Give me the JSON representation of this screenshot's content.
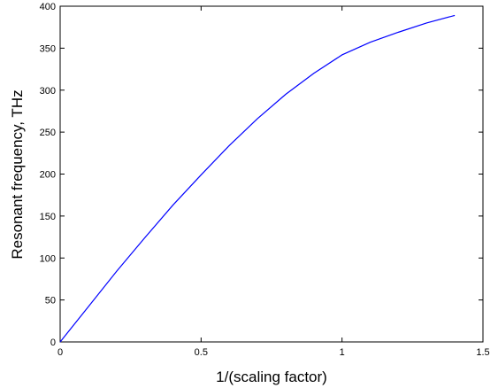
{
  "chart_data": {
    "type": "line",
    "title": "",
    "xlabel": "1/(scaling factor)",
    "ylabel": "Resonant frequency, THz",
    "xlim": [
      0,
      1.5
    ],
    "ylim": [
      0,
      400
    ],
    "xticks": [
      0,
      0.5,
      1,
      1.5
    ],
    "xtick_labels": [
      "0",
      "0.5",
      "1",
      "1.5"
    ],
    "yticks": [
      0,
      50,
      100,
      150,
      200,
      250,
      300,
      350,
      400
    ],
    "ytick_labels": [
      "0",
      "50",
      "100",
      "150",
      "200",
      "250",
      "300",
      "350",
      "400"
    ],
    "grid": false,
    "legend": "none",
    "line_color": "#0000ff",
    "series": [
      {
        "x": [
          0,
          0.1,
          0.2,
          0.3,
          0.4,
          0.5,
          0.6,
          0.7,
          0.8,
          0.9,
          1.0,
          1.1,
          1.2,
          1.3,
          1.4
        ],
        "y": [
          0,
          42,
          84,
          124,
          163,
          199,
          234,
          266,
          295,
          320,
          342,
          357,
          369,
          380,
          389
        ]
      }
    ]
  }
}
